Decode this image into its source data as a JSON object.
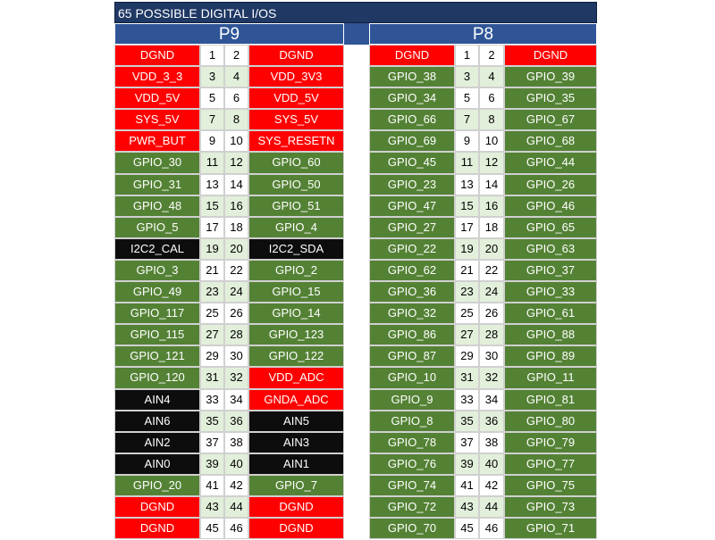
{
  "title": "65 POSSIBLE DIGITAL I/OS",
  "headers": {
    "left": "P9",
    "right": "P8"
  },
  "colors": {
    "title_bg": "#1f3864",
    "header_bg": "#2f5597",
    "red": "#ff0000",
    "green": "#548235",
    "black": "#0d0d0d",
    "pin_shade": "#e2efda"
  },
  "rows": [
    {
      "p9": {
        "left": "DGND",
        "lc": "red",
        "n1": "1",
        "n2": "2",
        "right": "DGND",
        "rc": "red"
      },
      "p8": {
        "left": "DGND",
        "lc": "red",
        "n1": "1",
        "n2": "2",
        "right": "DGND",
        "rc": "red"
      }
    },
    {
      "p9": {
        "left": "VDD_3_3",
        "lc": "red",
        "n1": "3",
        "n2": "4",
        "right": "VDD_3V3",
        "rc": "red"
      },
      "p8": {
        "left": "GPIO_38",
        "lc": "green",
        "n1": "3",
        "n2": "4",
        "right": "GPIO_39",
        "rc": "green"
      }
    },
    {
      "p9": {
        "left": "VDD_5V",
        "lc": "red",
        "n1": "5",
        "n2": "6",
        "right": "VDD_5V",
        "rc": "red"
      },
      "p8": {
        "left": "GPIO_34",
        "lc": "green",
        "n1": "5",
        "n2": "6",
        "right": "GPIO_35",
        "rc": "green"
      }
    },
    {
      "p9": {
        "left": "SYS_5V",
        "lc": "red",
        "n1": "7",
        "n2": "8",
        "right": "SYS_5V",
        "rc": "red"
      },
      "p8": {
        "left": "GPIO_66",
        "lc": "green",
        "n1": "7",
        "n2": "8",
        "right": "GPIO_67",
        "rc": "green"
      }
    },
    {
      "p9": {
        "left": "PWR_BUT",
        "lc": "red",
        "n1": "9",
        "n2": "10",
        "right": "SYS_RESETN",
        "rc": "red"
      },
      "p8": {
        "left": "GPIO_69",
        "lc": "green",
        "n1": "9",
        "n2": "10",
        "right": "GPIO_68",
        "rc": "green"
      }
    },
    {
      "p9": {
        "left": "GPIO_30",
        "lc": "green",
        "n1": "11",
        "n2": "12",
        "right": "GPIO_60",
        "rc": "green"
      },
      "p8": {
        "left": "GPIO_45",
        "lc": "green",
        "n1": "11",
        "n2": "12",
        "right": "GPIO_44",
        "rc": "green"
      }
    },
    {
      "p9": {
        "left": "GPIO_31",
        "lc": "green",
        "n1": "13",
        "n2": "14",
        "right": "GPIO_50",
        "rc": "green"
      },
      "p8": {
        "left": "GPIO_23",
        "lc": "green",
        "n1": "13",
        "n2": "14",
        "right": "GPIO_26",
        "rc": "green"
      }
    },
    {
      "p9": {
        "left": "GPIO_48",
        "lc": "green",
        "n1": "15",
        "n2": "16",
        "right": "GPIO_51",
        "rc": "green"
      },
      "p8": {
        "left": "GPIO_47",
        "lc": "green",
        "n1": "15",
        "n2": "16",
        "right": "GPIO_46",
        "rc": "green"
      }
    },
    {
      "p9": {
        "left": "GPIO_5",
        "lc": "green",
        "n1": "17",
        "n2": "18",
        "right": "GPIO_4",
        "rc": "green"
      },
      "p8": {
        "left": "GPIO_27",
        "lc": "green",
        "n1": "17",
        "n2": "18",
        "right": "GPIO_65",
        "rc": "green"
      }
    },
    {
      "p9": {
        "left": "I2C2_CAL",
        "lc": "black",
        "n1": "19",
        "n2": "20",
        "right": "I2C2_SDA",
        "rc": "black"
      },
      "p8": {
        "left": "GPIO_22",
        "lc": "green",
        "n1": "19",
        "n2": "20",
        "right": "GPIO_63",
        "rc": "green"
      }
    },
    {
      "p9": {
        "left": "GPIO_3",
        "lc": "green",
        "n1": "21",
        "n2": "22",
        "right": "GPIO_2",
        "rc": "green"
      },
      "p8": {
        "left": "GPIO_62",
        "lc": "green",
        "n1": "21",
        "n2": "22",
        "right": "GPIO_37",
        "rc": "green"
      }
    },
    {
      "p9": {
        "left": "GPIO_49",
        "lc": "green",
        "n1": "23",
        "n2": "24",
        "right": "GPIO_15",
        "rc": "green"
      },
      "p8": {
        "left": "GPIO_36",
        "lc": "green",
        "n1": "23",
        "n2": "24",
        "right": "GPIO_33",
        "rc": "green"
      }
    },
    {
      "p9": {
        "left": "GPIO_117",
        "lc": "green",
        "n1": "25",
        "n2": "26",
        "right": "GPIO_14",
        "rc": "green"
      },
      "p8": {
        "left": "GPIO_32",
        "lc": "green",
        "n1": "25",
        "n2": "26",
        "right": "GPIO_61",
        "rc": "green"
      }
    },
    {
      "p9": {
        "left": "GPIO_115",
        "lc": "green",
        "n1": "27",
        "n2": "28",
        "right": "GPIO_123",
        "rc": "green"
      },
      "p8": {
        "left": "GPIO_86",
        "lc": "green",
        "n1": "27",
        "n2": "28",
        "right": "GPIO_88",
        "rc": "green"
      }
    },
    {
      "p9": {
        "left": "GPIO_121",
        "lc": "green",
        "n1": "29",
        "n2": "30",
        "right": "GPIO_122",
        "rc": "green"
      },
      "p8": {
        "left": "GPIO_87",
        "lc": "green",
        "n1": "29",
        "n2": "30",
        "right": "GPIO_89",
        "rc": "green"
      }
    },
    {
      "p9": {
        "left": "GPIO_120",
        "lc": "green",
        "n1": "31",
        "n2": "32",
        "right": "VDD_ADC",
        "rc": "red"
      },
      "p8": {
        "left": "GPIO_10",
        "lc": "green",
        "n1": "31",
        "n2": "32",
        "right": "GPIO_11",
        "rc": "green"
      }
    },
    {
      "p9": {
        "left": "AIN4",
        "lc": "black",
        "n1": "33",
        "n2": "34",
        "right": "GNDA_ADC",
        "rc": "red"
      },
      "p8": {
        "left": "GPIO_9",
        "lc": "green",
        "n1": "33",
        "n2": "34",
        "right": "GPIO_81",
        "rc": "green"
      }
    },
    {
      "p9": {
        "left": "AIN6",
        "lc": "black",
        "n1": "35",
        "n2": "36",
        "right": "AIN5",
        "rc": "black"
      },
      "p8": {
        "left": "GPIO_8",
        "lc": "green",
        "n1": "35",
        "n2": "36",
        "right": "GPIO_80",
        "rc": "green"
      }
    },
    {
      "p9": {
        "left": "AIN2",
        "lc": "black",
        "n1": "37",
        "n2": "38",
        "right": "AIN3",
        "rc": "black"
      },
      "p8": {
        "left": "GPIO_78",
        "lc": "green",
        "n1": "37",
        "n2": "38",
        "right": "GPIO_79",
        "rc": "green"
      }
    },
    {
      "p9": {
        "left": "AIN0",
        "lc": "black",
        "n1": "39",
        "n2": "40",
        "right": "AIN1",
        "rc": "black"
      },
      "p8": {
        "left": "GPIO_76",
        "lc": "green",
        "n1": "39",
        "n2": "40",
        "right": "GPIO_77",
        "rc": "green"
      }
    },
    {
      "p9": {
        "left": "GPIO_20",
        "lc": "green",
        "n1": "41",
        "n2": "42",
        "right": "GPIO_7",
        "rc": "green"
      },
      "p8": {
        "left": "GPIO_74",
        "lc": "green",
        "n1": "41",
        "n2": "42",
        "right": "GPIO_75",
        "rc": "green"
      }
    },
    {
      "p9": {
        "left": "DGND",
        "lc": "red",
        "n1": "43",
        "n2": "44",
        "right": "DGND",
        "rc": "red"
      },
      "p8": {
        "left": "GPIO_72",
        "lc": "green",
        "n1": "43",
        "n2": "44",
        "right": "GPIO_73",
        "rc": "green"
      }
    },
    {
      "p9": {
        "left": "DGND",
        "lc": "red",
        "n1": "45",
        "n2": "46",
        "right": "DGND",
        "rc": "red"
      },
      "p8": {
        "left": "GPIO_70",
        "lc": "green",
        "n1": "45",
        "n2": "46",
        "right": "GPIO_71",
        "rc": "green"
      }
    }
  ]
}
